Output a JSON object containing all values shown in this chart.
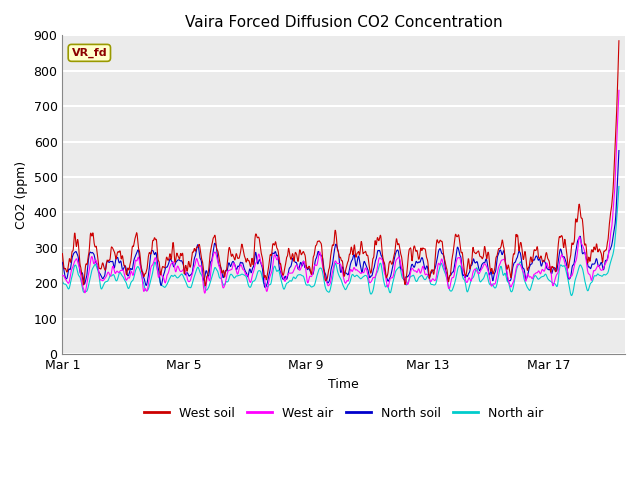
{
  "title": "Vaira Forced Diffusion CO2 Concentration",
  "xlabel": "Time",
  "ylabel": "CO2 (ppm)",
  "ylim": [
    0,
    900
  ],
  "xlim_days": [
    0,
    18.5
  ],
  "yticks": [
    0,
    100,
    200,
    300,
    400,
    500,
    600,
    700,
    800,
    900
  ],
  "xtick_positions": [
    0,
    4,
    8,
    12,
    16
  ],
  "xtick_labels": [
    "Mar 1",
    "Mar 5",
    "Mar 9",
    "Mar 13",
    "Mar 17"
  ],
  "legend_label": "VR_fd",
  "series_colors": {
    "west_soil": "#cc0000",
    "west_air": "#ff00ff",
    "north_soil": "#0000cc",
    "north_air": "#00cccc"
  },
  "series_labels": [
    "West soil",
    "West air",
    "North soil",
    "North air"
  ],
  "background_color": "#ebebeb",
  "plot_bg_color": "#ffffff",
  "grid_color": "#ffffff",
  "n_days": 18.3,
  "samples_per_day": 96,
  "seed": 7
}
